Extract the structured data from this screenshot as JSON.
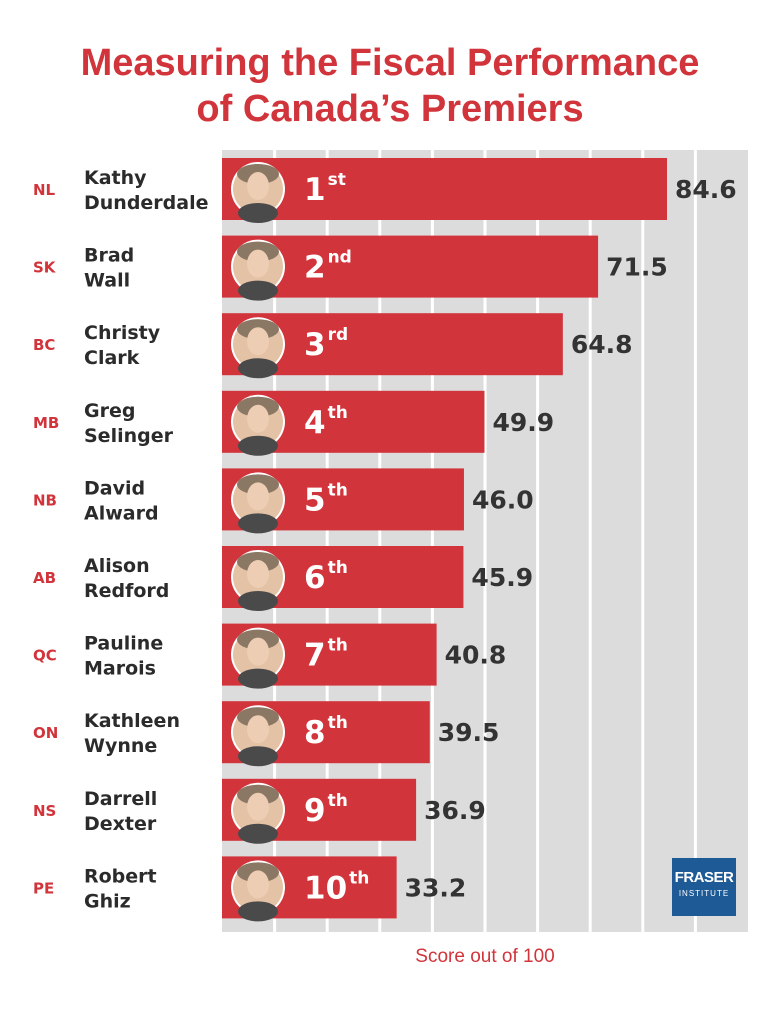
{
  "title_line1": "Measuring the Fiscal Performance",
  "title_line2": "of Canada’s Premiers",
  "logo": {
    "line1": "FRASER",
    "line2": "INSTITUTE"
  },
  "colors": {
    "bar": "#d1343b",
    "background": "#dcdcdc",
    "gridline": "#ffffff",
    "accent_text": "#d1343b"
  },
  "chart_data": {
    "type": "bar",
    "orientation": "horizontal",
    "xlabel": "Score out of 100",
    "xlim": [
      0,
      100
    ],
    "grid": true,
    "categories": [
      "Kathy Dunderdale",
      "Brad Wall",
      "Christy Clark",
      "Greg Selinger",
      "David Alward",
      "Alison Redford",
      "Pauline Marois",
      "Kathleen Wynne",
      "Darrell Dexter",
      "Robert Ghiz"
    ],
    "values": [
      84.6,
      71.5,
      64.8,
      49.9,
      46.0,
      45.9,
      40.8,
      39.5,
      36.9,
      33.2
    ],
    "rows": [
      {
        "province": "NL",
        "first": "Kathy",
        "last": "Dunderdale",
        "rank": "1",
        "suffix": "st",
        "score": "84.6",
        "value": 84.6
      },
      {
        "province": "SK",
        "first": "Brad",
        "last": "Wall",
        "rank": "2",
        "suffix": "nd",
        "score": "71.5",
        "value": 71.5
      },
      {
        "province": "BC",
        "first": "Christy",
        "last": "Clark",
        "rank": "3",
        "suffix": "rd",
        "score": "64.8",
        "value": 64.8
      },
      {
        "province": "MB",
        "first": "Greg",
        "last": "Selinger",
        "rank": "4",
        "suffix": "th",
        "score": "49.9",
        "value": 49.9
      },
      {
        "province": "NB",
        "first": "David",
        "last": "Alward",
        "rank": "5",
        "suffix": "th",
        "score": "46.0",
        "value": 46.0
      },
      {
        "province": "AB",
        "first": "Alison",
        "last": "Redford",
        "rank": "6",
        "suffix": "th",
        "score": "45.9",
        "value": 45.9
      },
      {
        "province": "QC",
        "first": "Pauline",
        "last": "Marois",
        "rank": "7",
        "suffix": "th",
        "score": "40.8",
        "value": 40.8
      },
      {
        "province": "ON",
        "first": "Kathleen",
        "last": "Wynne",
        "rank": "8",
        "suffix": "th",
        "score": "39.5",
        "value": 39.5
      },
      {
        "province": "NS",
        "first": "Darrell",
        "last": "Dexter",
        "rank": "9",
        "suffix": "th",
        "score": "36.9",
        "value": 36.9
      },
      {
        "province": "PE",
        "first": "Robert",
        "last": "Ghiz",
        "rank": "10",
        "suffix": "th",
        "score": "33.2",
        "value": 33.2
      }
    ]
  }
}
